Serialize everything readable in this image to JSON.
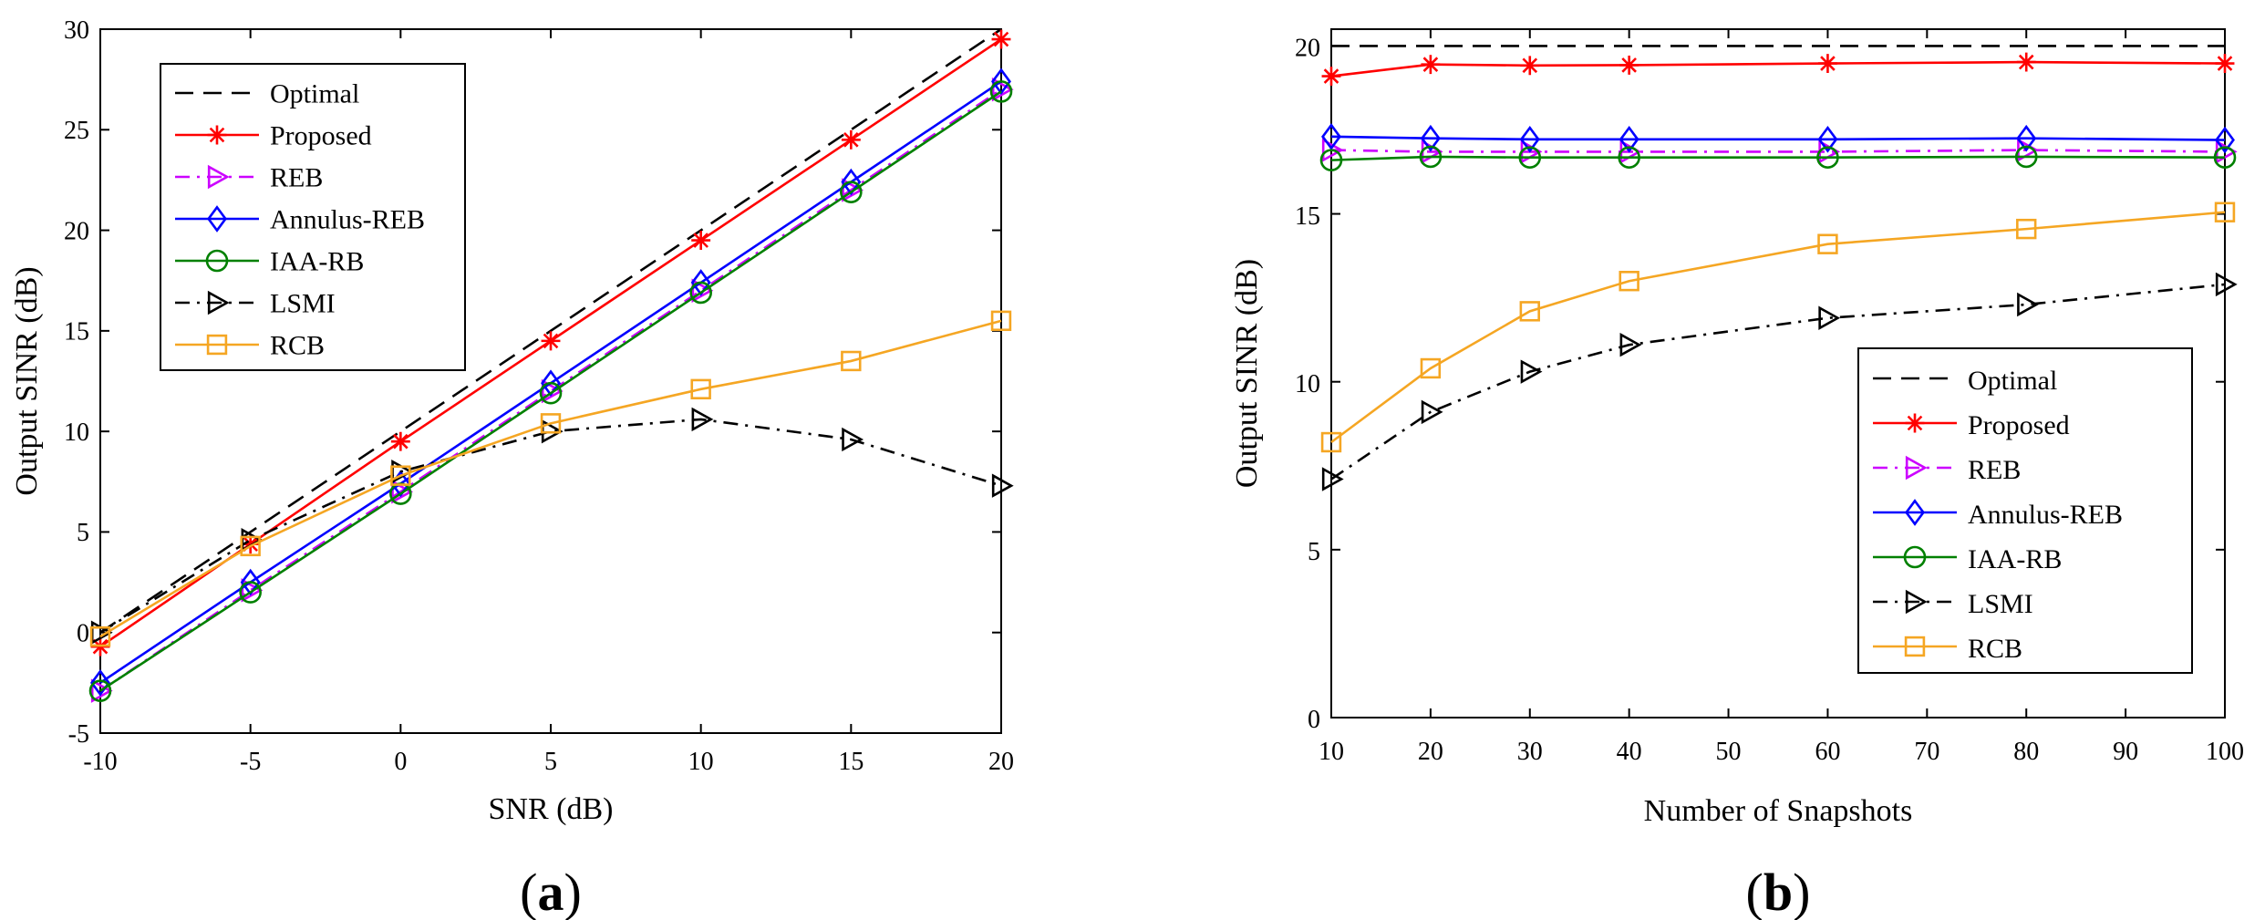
{
  "chart_data": [
    {
      "type": "line",
      "panel_label": "(a)",
      "xlabel": "SNR (dB)",
      "ylabel": "Output SINR (dB)",
      "xlim": [
        -10,
        20
      ],
      "ylim": [
        -5,
        30
      ],
      "xticks": [
        -10,
        -5,
        0,
        5,
        10,
        15,
        20
      ],
      "yticks": [
        -5,
        0,
        5,
        10,
        15,
        20,
        25,
        30
      ],
      "x": [
        -10,
        -5,
        0,
        5,
        10,
        15,
        20
      ],
      "legend_position": "top-left",
      "grid": false,
      "series": [
        {
          "name": "Optimal",
          "values": [
            0,
            5,
            10,
            15,
            20,
            25,
            30
          ],
          "color": "#000000",
          "dash": "dashed",
          "marker": "none"
        },
        {
          "name": "Proposed",
          "values": [
            -0.7,
            4.4,
            9.5,
            14.5,
            19.5,
            24.5,
            29.5
          ],
          "color": "#ff0000",
          "dash": "solid",
          "marker": "star"
        },
        {
          "name": "REB",
          "values": [
            -2.9,
            2.1,
            7.0,
            12.0,
            17.0,
            22.0,
            27.0
          ],
          "color": "#cc00ff",
          "dash": "dashdot",
          "marker": "triangle-right"
        },
        {
          "name": "Annulus-REB",
          "values": [
            -2.5,
            2.5,
            7.4,
            12.4,
            17.4,
            22.4,
            27.4
          ],
          "color": "#0000ff",
          "dash": "solid",
          "marker": "diamond"
        },
        {
          "name": "IAA-RB",
          "values": [
            -2.9,
            2.0,
            6.9,
            11.9,
            16.9,
            21.9,
            26.9
          ],
          "color": "#008000",
          "dash": "solid",
          "marker": "circle"
        },
        {
          "name": "LSMI",
          "values": [
            0.0,
            4.6,
            8.0,
            10.0,
            10.6,
            9.6,
            7.3
          ],
          "color": "#000000",
          "dash": "dashdot",
          "marker": "triangle-right"
        },
        {
          "name": "RCB",
          "values": [
            -0.2,
            4.3,
            7.8,
            10.4,
            12.1,
            13.5,
            15.5
          ],
          "color": "#f5a623",
          "dash": "solid",
          "marker": "square"
        }
      ]
    },
    {
      "type": "line",
      "panel_label": "(b)",
      "xlabel": "Number of Snapshots",
      "ylabel": "Output SINR (dB)",
      "xlim": [
        10,
        100
      ],
      "ylim": [
        0,
        20.5
      ],
      "xticks": [
        10,
        20,
        30,
        40,
        50,
        60,
        70,
        80,
        90,
        100
      ],
      "yticks": [
        0,
        5,
        10,
        15,
        20
      ],
      "x": [
        10,
        20,
        30,
        40,
        60,
        80,
        100
      ],
      "legend_position": "bottom-right",
      "grid": false,
      "series": [
        {
          "name": "Optimal",
          "values": [
            20.0,
            20.0,
            20.0,
            20.0,
            20.0,
            20.0,
            20.0
          ],
          "color": "#000000",
          "dash": "dashed",
          "marker": "none"
        },
        {
          "name": "Proposed",
          "values": [
            19.1,
            19.45,
            19.42,
            19.43,
            19.48,
            19.52,
            19.48
          ],
          "color": "#ff0000",
          "dash": "solid",
          "marker": "star"
        },
        {
          "name": "REB",
          "values": [
            16.9,
            16.85,
            16.85,
            16.85,
            16.85,
            16.9,
            16.85
          ],
          "color": "#cc00ff",
          "dash": "dashdot",
          "marker": "triangle-right"
        },
        {
          "name": "Annulus-REB",
          "values": [
            17.3,
            17.25,
            17.22,
            17.22,
            17.22,
            17.25,
            17.2
          ],
          "color": "#0000ff",
          "dash": "solid",
          "marker": "diamond"
        },
        {
          "name": "IAA-RB",
          "values": [
            16.6,
            16.7,
            16.68,
            16.68,
            16.68,
            16.7,
            16.68
          ],
          "color": "#008000",
          "dash": "solid",
          "marker": "circle"
        },
        {
          "name": "LSMI",
          "values": [
            7.1,
            9.1,
            10.3,
            11.1,
            11.9,
            12.3,
            12.9
          ],
          "color": "#000000",
          "dash": "dashdot",
          "marker": "triangle-right"
        },
        {
          "name": "RCB",
          "values": [
            8.2,
            10.4,
            12.1,
            13.0,
            14.1,
            14.55,
            15.05
          ],
          "color": "#f5a623",
          "dash": "solid",
          "marker": "square"
        }
      ]
    }
  ]
}
